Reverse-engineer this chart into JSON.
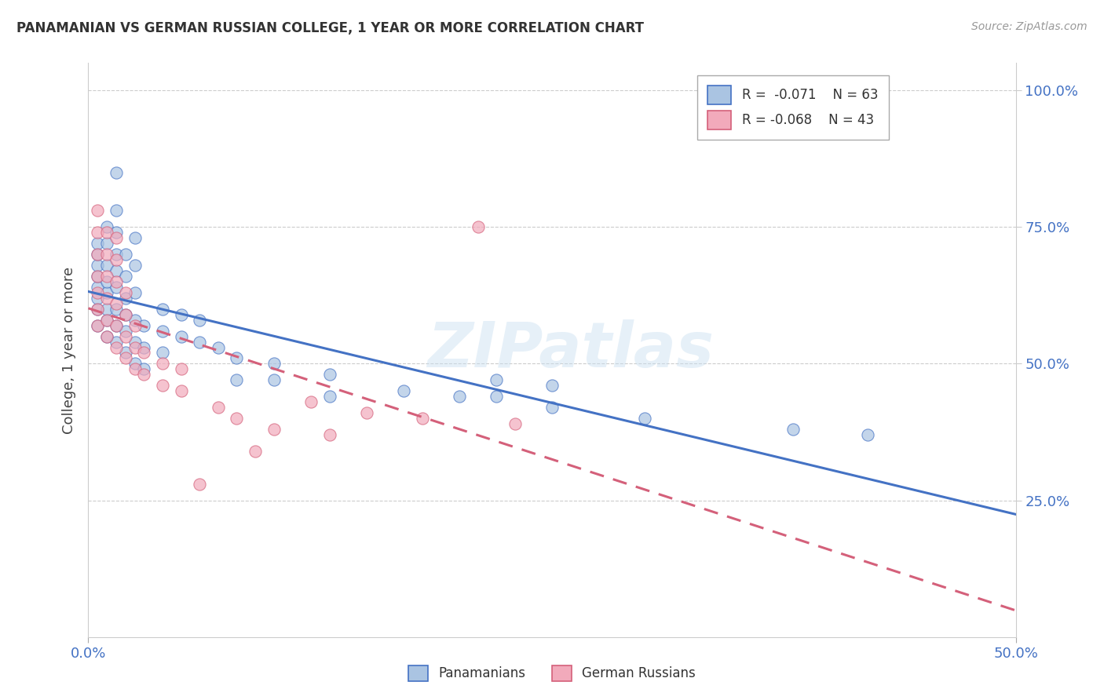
{
  "title": "PANAMANIAN VS GERMAN RUSSIAN COLLEGE, 1 YEAR OR MORE CORRELATION CHART",
  "source": "Source: ZipAtlas.com",
  "ylabel": "College, 1 year or more",
  "xlim": [
    0.0,
    0.5
  ],
  "ylim": [
    0.0,
    1.05
  ],
  "x_ticks": [
    0.0,
    0.5
  ],
  "x_tick_labels": [
    "0.0%",
    "50.0%"
  ],
  "y_ticks": [
    0.25,
    0.5,
    0.75,
    1.0
  ],
  "y_tick_labels_right": [
    "25.0%",
    "50.0%",
    "75.0%",
    "100.0%"
  ],
  "legend_R1": "R =  -0.071",
  "legend_N1": "N = 63",
  "legend_R2": "R = -0.068",
  "legend_N2": "N = 43",
  "color_blue": "#aac4e2",
  "color_pink": "#f2aabb",
  "line_blue": "#4472c4",
  "line_pink": "#d4607a",
  "watermark": "ZIPatlas",
  "blue_points": [
    [
      0.005,
      0.57
    ],
    [
      0.005,
      0.6
    ],
    [
      0.005,
      0.62
    ],
    [
      0.005,
      0.64
    ],
    [
      0.005,
      0.66
    ],
    [
      0.005,
      0.68
    ],
    [
      0.005,
      0.7
    ],
    [
      0.005,
      0.72
    ],
    [
      0.01,
      0.55
    ],
    [
      0.01,
      0.58
    ],
    [
      0.01,
      0.6
    ],
    [
      0.01,
      0.63
    ],
    [
      0.01,
      0.65
    ],
    [
      0.01,
      0.68
    ],
    [
      0.01,
      0.72
    ],
    [
      0.01,
      0.75
    ],
    [
      0.015,
      0.54
    ],
    [
      0.015,
      0.57
    ],
    [
      0.015,
      0.6
    ],
    [
      0.015,
      0.64
    ],
    [
      0.015,
      0.67
    ],
    [
      0.015,
      0.7
    ],
    [
      0.015,
      0.74
    ],
    [
      0.015,
      0.78
    ],
    [
      0.015,
      0.85
    ],
    [
      0.02,
      0.52
    ],
    [
      0.02,
      0.56
    ],
    [
      0.02,
      0.59
    ],
    [
      0.02,
      0.62
    ],
    [
      0.02,
      0.66
    ],
    [
      0.02,
      0.7
    ],
    [
      0.025,
      0.5
    ],
    [
      0.025,
      0.54
    ],
    [
      0.025,
      0.58
    ],
    [
      0.025,
      0.63
    ],
    [
      0.025,
      0.68
    ],
    [
      0.025,
      0.73
    ],
    [
      0.03,
      0.49
    ],
    [
      0.03,
      0.53
    ],
    [
      0.03,
      0.57
    ],
    [
      0.04,
      0.52
    ],
    [
      0.04,
      0.56
    ],
    [
      0.04,
      0.6
    ],
    [
      0.05,
      0.55
    ],
    [
      0.05,
      0.59
    ],
    [
      0.06,
      0.54
    ],
    [
      0.06,
      0.58
    ],
    [
      0.07,
      0.53
    ],
    [
      0.08,
      0.47
    ],
    [
      0.08,
      0.51
    ],
    [
      0.1,
      0.47
    ],
    [
      0.1,
      0.5
    ],
    [
      0.13,
      0.44
    ],
    [
      0.13,
      0.48
    ],
    [
      0.17,
      0.45
    ],
    [
      0.2,
      0.44
    ],
    [
      0.22,
      0.44
    ],
    [
      0.22,
      0.47
    ],
    [
      0.25,
      0.42
    ],
    [
      0.25,
      0.46
    ],
    [
      0.3,
      0.4
    ],
    [
      0.38,
      0.38
    ],
    [
      0.42,
      0.37
    ]
  ],
  "pink_points": [
    [
      0.005,
      0.57
    ],
    [
      0.005,
      0.6
    ],
    [
      0.005,
      0.63
    ],
    [
      0.005,
      0.66
    ],
    [
      0.005,
      0.7
    ],
    [
      0.005,
      0.74
    ],
    [
      0.005,
      0.78
    ],
    [
      0.01,
      0.55
    ],
    [
      0.01,
      0.58
    ],
    [
      0.01,
      0.62
    ],
    [
      0.01,
      0.66
    ],
    [
      0.01,
      0.7
    ],
    [
      0.01,
      0.74
    ],
    [
      0.015,
      0.53
    ],
    [
      0.015,
      0.57
    ],
    [
      0.015,
      0.61
    ],
    [
      0.015,
      0.65
    ],
    [
      0.015,
      0.69
    ],
    [
      0.015,
      0.73
    ],
    [
      0.02,
      0.51
    ],
    [
      0.02,
      0.55
    ],
    [
      0.02,
      0.59
    ],
    [
      0.02,
      0.63
    ],
    [
      0.025,
      0.49
    ],
    [
      0.025,
      0.53
    ],
    [
      0.025,
      0.57
    ],
    [
      0.03,
      0.48
    ],
    [
      0.03,
      0.52
    ],
    [
      0.04,
      0.46
    ],
    [
      0.04,
      0.5
    ],
    [
      0.05,
      0.45
    ],
    [
      0.05,
      0.49
    ],
    [
      0.07,
      0.42
    ],
    [
      0.08,
      0.4
    ],
    [
      0.1,
      0.38
    ],
    [
      0.12,
      0.43
    ],
    [
      0.15,
      0.41
    ],
    [
      0.18,
      0.4
    ],
    [
      0.21,
      0.75
    ],
    [
      0.23,
      0.39
    ],
    [
      0.13,
      0.37
    ],
    [
      0.09,
      0.34
    ],
    [
      0.06,
      0.28
    ]
  ]
}
